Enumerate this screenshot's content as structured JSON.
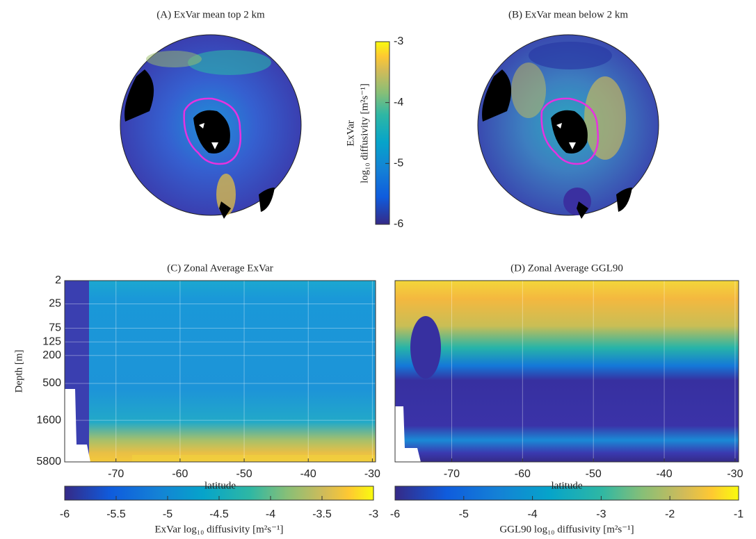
{
  "chart_data": [
    {
      "type": "map",
      "title": "(A) ExVar mean top 2 km"
    },
    {
      "type": "map",
      "title": "(B) ExVar mean below 2 km",
      "colorbar": {
        "label": "ExVar",
        "sublabel": "log₁₀ diffusivity [m²s⁻¹]",
        "lim": [
          -6,
          -3
        ],
        "ticks": [
          -6,
          -5,
          -4,
          -3
        ]
      }
    },
    {
      "type": "heatmap",
      "title": "(C) Zonal Average ExVar",
      "xlabel": "latitude",
      "ylabel": "Depth [m]",
      "xlim": [
        -78,
        -29.5
      ],
      "xticks": [
        -70,
        -60,
        -50,
        -40,
        -30
      ],
      "ylim": [
        2,
        5800
      ],
      "yticks": [
        2,
        25,
        75,
        125,
        200,
        500,
        1600,
        5800
      ],
      "grid": true,
      "colorbar": {
        "label": "ExVar log₁₀ diffusivity [m²s⁻¹]",
        "lim": [
          -6,
          -3
        ],
        "ticks": [
          -6,
          -5.5,
          -5,
          -4.5,
          -4,
          -3.5,
          -3
        ]
      }
    },
    {
      "type": "heatmap",
      "title": "(D) Zonal Average GGL90",
      "xlabel": "latitude",
      "xlim": [
        -78,
        -29.5
      ],
      "xticks": [
        -70,
        -60,
        -50,
        -40,
        -30
      ],
      "ylim": [
        2,
        5800
      ],
      "grid": true,
      "colorbar": {
        "label": "GGL90 log₁₀ diffusivity [m²s⁻¹]",
        "lim": [
          -6,
          -1
        ],
        "ticks": [
          -6,
          -5,
          -4,
          -3,
          -2,
          -1
        ]
      }
    }
  ]
}
